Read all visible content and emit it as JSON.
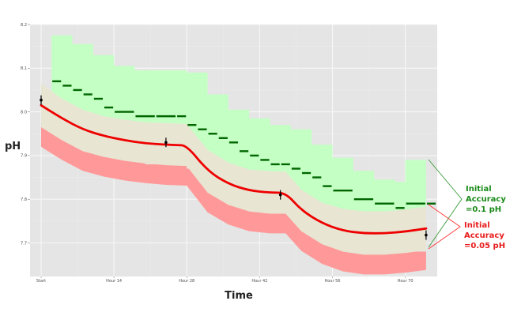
{
  "chart_data": {
    "type": "line",
    "title": "",
    "xlabel": "Time",
    "ylabel": "pH",
    "x_tick_labels": [
      "Start",
      "Hour 14",
      "Hour 28",
      "Hour 42",
      "Hour 56",
      "Hour 70"
    ],
    "x_ticks_hours": [
      0,
      14,
      28,
      42,
      56,
      70
    ],
    "xlim_hours": [
      -2,
      76
    ],
    "y_tick_labels": [
      "7.7",
      "7.8",
      "7.9",
      "8.0",
      "8.1",
      "8.2"
    ],
    "y_ticks": [
      7.7,
      7.8,
      7.9,
      8.0,
      8.1,
      8.2
    ],
    "ylim": [
      7.625,
      8.2
    ],
    "grid": true,
    "background": "#e5e5e5",
    "series": [
      {
        "name": "Estimated pH (red line)",
        "color": "#ee0000",
        "x_hours": [
          0,
          4,
          8,
          12,
          16,
          20,
          24,
          26,
          28,
          32,
          36,
          40,
          44,
          47,
          50,
          54,
          58,
          62,
          66,
          70,
          74
        ],
        "values": [
          8.015,
          7.985,
          7.96,
          7.945,
          7.935,
          7.928,
          7.925,
          7.924,
          7.923,
          7.865,
          7.835,
          7.82,
          7.815,
          7.815,
          7.775,
          7.745,
          7.728,
          7.722,
          7.722,
          7.726,
          7.733
        ]
      },
      {
        "name": "Initial Accuracy =0.05 pH band (beige)",
        "color": "#e8e5d2",
        "x_hours": [
          0,
          4,
          8,
          12,
          16,
          20,
          24,
          26,
          28,
          32,
          36,
          40,
          44,
          47,
          50,
          54,
          58,
          62,
          66,
          70,
          74
        ],
        "upper": [
          8.065,
          8.03,
          8.005,
          7.99,
          7.982,
          7.976,
          7.974,
          7.973,
          7.972,
          7.913,
          7.884,
          7.868,
          7.864,
          7.863,
          7.822,
          7.792,
          7.778,
          7.772,
          7.772,
          7.776,
          7.783
        ],
        "lower": [
          7.965,
          7.935,
          7.91,
          7.897,
          7.888,
          7.882,
          7.878,
          7.877,
          7.876,
          7.815,
          7.787,
          7.772,
          7.767,
          7.767,
          7.727,
          7.697,
          7.68,
          7.673,
          7.673,
          7.677,
          7.683
        ]
      },
      {
        "name": "Initial Accuracy =0.1 pH band (green, upper extension)",
        "color": "#c4ffc4",
        "x_hours": [
          2,
          6,
          10,
          14,
          18,
          22,
          24,
          28,
          32,
          36,
          40,
          44,
          48,
          52,
          56,
          60,
          64,
          68,
          70,
          74
        ],
        "upper": [
          8.175,
          8.155,
          8.13,
          8.105,
          8.095,
          8.095,
          8.095,
          8.09,
          8.04,
          8.005,
          7.985,
          7.97,
          7.96,
          7.925,
          7.895,
          7.865,
          7.845,
          7.84,
          7.89,
          7.89
        ]
      },
      {
        "name": "Stepped green readings (0.01 resolution)",
        "color": "#006600",
        "x_hours": [
          2,
          4,
          6,
          8,
          10,
          12,
          14,
          18,
          22,
          26,
          28,
          30,
          32,
          34,
          36,
          38,
          40,
          42,
          44,
          46,
          48,
          50,
          52,
          54,
          56,
          60,
          64,
          68,
          70,
          74
        ],
        "values": [
          8.07,
          8.06,
          8.05,
          8.04,
          8.03,
          8.01,
          8.0,
          7.99,
          7.99,
          7.99,
          7.97,
          7.96,
          7.95,
          7.94,
          7.93,
          7.91,
          7.9,
          7.89,
          7.88,
          7.88,
          7.87,
          7.86,
          7.85,
          7.83,
          7.82,
          7.8,
          7.79,
          7.78,
          7.79,
          7.79
        ]
      },
      {
        "name": "Stepped pink readings (lower 0.1 band)",
        "color": "#ff9999",
        "x_hours": [
          0,
          2,
          4,
          6,
          8,
          10,
          12,
          14,
          16,
          20,
          24,
          26,
          28,
          30,
          32,
          34,
          36,
          38,
          40,
          42,
          44,
          46,
          48,
          50,
          52,
          54,
          56,
          60,
          64,
          68,
          70,
          74
        ],
        "values": [
          7.97,
          7.96,
          7.95,
          7.94,
          7.93,
          7.92,
          7.91,
          7.9,
          7.89,
          7.88,
          7.88,
          7.88,
          7.87,
          7.86,
          7.85,
          7.84,
          7.83,
          7.82,
          7.8,
          7.79,
          7.78,
          7.78,
          7.77,
          7.76,
          7.75,
          7.74,
          7.72,
          7.7,
          7.69,
          7.68,
          7.68,
          7.69
        ]
      },
      {
        "name": "Calibration points (error bars)",
        "color": "#000000",
        "x_hours": [
          0,
          24,
          46,
          74
        ],
        "values": [
          8.027,
          7.93,
          7.81,
          7.718
        ]
      }
    ],
    "annotations": [
      {
        "text": "Initial Accuracy =0.1 pH",
        "color": "#1a8a1a"
      },
      {
        "text": "Initial Accuracy =0.05 pH",
        "color": "#e81c1c"
      }
    ]
  },
  "axes": {
    "x_title": "Time",
    "y_title": "pH",
    "x_ticks": [
      "Start",
      "Hour 14",
      "Hour 28",
      "Hour 42",
      "Hour 56",
      "Hour 70"
    ],
    "y_ticks": [
      "8.2",
      "8.1",
      "8.0",
      "7.9",
      "7.8",
      "7.7"
    ]
  },
  "legend_annotations": {
    "green": {
      "line1": "Initial",
      "line2": "Accuracy",
      "line3": "=0.1 pH",
      "color": "#1a8a1a"
    },
    "red": {
      "line1": "Initial",
      "line2": "Accuracy",
      "line3": "=0.05 pH",
      "color": "#e81c1c"
    }
  }
}
